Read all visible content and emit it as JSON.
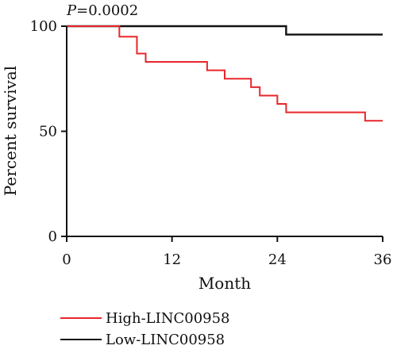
{
  "chart_data": {
    "type": "line",
    "subtype": "kaplan-meier step",
    "xlabel": "Month",
    "ylabel": "Percent survival",
    "xlim": [
      0,
      36
    ],
    "ylim": [
      0,
      100
    ],
    "xticks": [
      "0",
      "12",
      "24",
      "36"
    ],
    "yticks": [
      "0",
      "50",
      "100"
    ],
    "grid": false,
    "annotation": {
      "italic_prefix": "P",
      "rest": "=0.0002"
    },
    "legend_position": "bottom-left",
    "series": [
      {
        "name": "High-LINC00958",
        "color": "#e8262b",
        "steps": [
          [
            0,
            100
          ],
          [
            6,
            95
          ],
          [
            8,
            87
          ],
          [
            9,
            83
          ],
          [
            16,
            79
          ],
          [
            18,
            75
          ],
          [
            21,
            71
          ],
          [
            22,
            67
          ],
          [
            24,
            63
          ],
          [
            25,
            59
          ],
          [
            34,
            55
          ],
          [
            36,
            55
          ]
        ]
      },
      {
        "name": "Low-LINC00958",
        "color": "#111111",
        "steps": [
          [
            0,
            100
          ],
          [
            25,
            96
          ],
          [
            36,
            96
          ]
        ]
      }
    ]
  }
}
